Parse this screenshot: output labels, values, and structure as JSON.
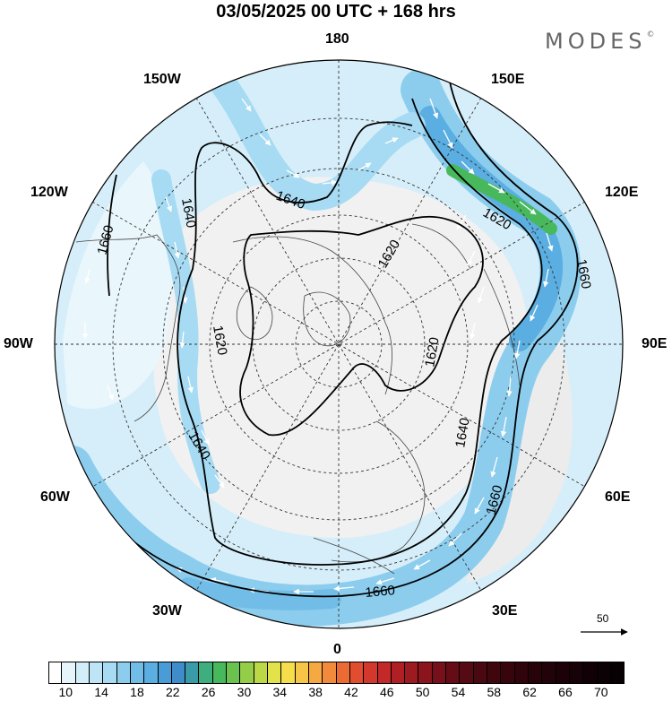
{
  "title": "03/05/2025  00 UTC  + 168 hrs",
  "brand": "MODES",
  "brand_mark": "©",
  "longitude_labels": {
    "lon_180": "180",
    "lon_150w": "150W",
    "lon_150e": "150E",
    "lon_120w": "120W",
    "lon_120e": "120E",
    "lon_90w": "90W",
    "lon_90e": "90E",
    "lon_60w": "60W",
    "lon_60e": "60E",
    "lon_30w": "30W",
    "lon_30e": "30E",
    "lon_0": "0"
  },
  "contour_labels": [
    "1640",
    "1620",
    "1660",
    "1640",
    "1620",
    "1620",
    "1640",
    "1660",
    "1620",
    "1640",
    "1660",
    "1660"
  ],
  "reference_vector": "50",
  "colorbar": {
    "colors": [
      "#ffffff",
      "#e6f5fb",
      "#d2eef9",
      "#bde5f6",
      "#a6dbf3",
      "#8ccdee",
      "#72bde7",
      "#5aaee1",
      "#4a9cd6",
      "#3e8cc9",
      "#3b9aa8",
      "#3fae7e",
      "#47b95c",
      "#6cc24e",
      "#94cd48",
      "#bcd846",
      "#e2e34a",
      "#f5dd4c",
      "#f7c548",
      "#f6a843",
      "#f28a3c",
      "#ec6b35",
      "#e04e2f",
      "#d2382b",
      "#c32928",
      "#b01f24",
      "#9d1a20",
      "#8a151c",
      "#77101a",
      "#650c16",
      "#560a13",
      "#4a0810",
      "#40060e",
      "#38050c",
      "#30040a",
      "#29030a",
      "#22030a",
      "#1c0208",
      "#160207",
      "#110106",
      "#0c0105",
      "#080104"
    ],
    "tick_labels": [
      "10",
      "14",
      "18",
      "22",
      "26",
      "30",
      "34",
      "38",
      "42",
      "46",
      "50",
      "54",
      "58",
      "62",
      "66",
      "70"
    ]
  }
}
